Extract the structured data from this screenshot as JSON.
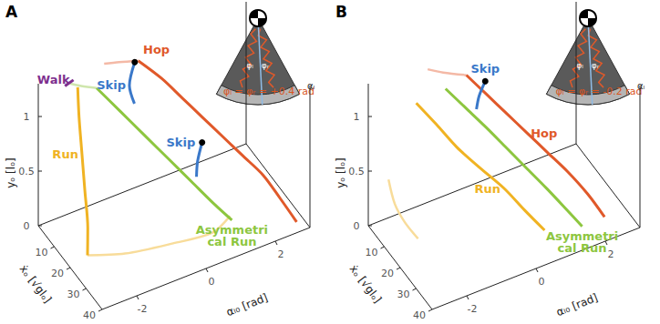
{
  "chart_data": [
    {
      "type": "line3d",
      "title": "A",
      "xlabel": "ẋₒ [√glₒ]",
      "ylabel": "αₗ₀ [rad]",
      "zlabel": "yₒ [lₒ]",
      "xlim": [
        0,
        40
      ],
      "ylim": [
        -3,
        3
      ],
      "zlim": [
        0,
        1.3
      ],
      "xticks": [
        10,
        20,
        30,
        40
      ],
      "yticks": [
        -2,
        0,
        2
      ],
      "zticks": [
        0,
        0.5,
        1
      ],
      "grid": false,
      "annotations": [
        "φₗ = φᵣ = +0.4 rad",
        "αₗ",
        "φₗ",
        "φᵣ"
      ],
      "series": [
        {
          "color": "#f4b9a6",
          "line_style": "faint",
          "x": [
            4,
            3,
            2.2
          ],
          "y": [
            -0.3,
            -0.8,
            -1.2
          ],
          "z": [
            1.25,
            1.28,
            1.3
          ]
        },
        {
          "color": "#f8dc9a",
          "line_style": "faint",
          "x": [
            20,
            24,
            28,
            31,
            29
          ],
          "y": [
            -2.5,
            -1.6,
            -0.4,
            0.6,
            1.2
          ],
          "z": [
            0.05,
            0.03,
            0.05,
            0.08,
            0.12
          ]
        },
        {
          "color": "#cfe6ad",
          "line_style": "faint",
          "x": [
            4,
            3,
            2.5
          ],
          "y": [
            -1.5,
            -1.9,
            -2.2
          ],
          "z": [
            1.15,
            1.2,
            1.25
          ]
        },
        {
          "name": "Walk",
          "color": "#7e2f8e",
          "line_style": "solid",
          "x": [
            1.5,
            2.5
          ],
          "y": [
            -2.3,
            -2.1
          ],
          "z": [
            1.22,
            1.27
          ]
        },
        {
          "name": "Run",
          "color": "#f0b323",
          "line_style": "solid",
          "x": [
            3,
            6,
            10,
            14,
            18,
            20
          ],
          "y": [
            -2.0,
            -2.1,
            -2.2,
            -2.3,
            -2.4,
            -2.5
          ],
          "z": [
            1.2,
            1.0,
            0.75,
            0.5,
            0.25,
            0.05
          ]
        },
        {
          "name": "Asymmetrical Run",
          "color": "#8dc63f",
          "line_style": "solid",
          "x": [
            4,
            8,
            12,
            16,
            20,
            24,
            28
          ],
          "y": [
            -1.5,
            -1.0,
            -0.5,
            0,
            0.5,
            1.0,
            1.3
          ],
          "z": [
            1.15,
            0.95,
            0.75,
            0.55,
            0.35,
            0.15,
            0.05
          ]
        },
        {
          "name": "Hop",
          "color": "#e0592a",
          "line_style": "solid",
          "x": [
            4,
            8,
            12,
            16,
            20,
            24,
            28,
            32,
            36
          ],
          "y": [
            -0.3,
            0.2,
            0.6,
            1.0,
            1.4,
            1.8,
            2.2,
            2.5,
            2.8
          ],
          "z": [
            1.25,
            1.1,
            0.95,
            0.8,
            0.65,
            0.5,
            0.35,
            0.18,
            0.0
          ]
        },
        {
          "name": "Skip",
          "color": "#3a78c9",
          "line_style": "solid",
          "marker": "circle",
          "x": [
            4,
            5,
            6
          ],
          "y": [
            -0.4,
            -0.6,
            -0.5
          ],
          "z": [
            1.25,
            1.08,
            0.92
          ]
        },
        {
          "name": "Skip",
          "color": "#3a78c9",
          "line_style": "solid",
          "marker": "circle",
          "x": [
            18,
            19.5,
            21
          ],
          "y": [
            0.9,
            0.7,
            0.6
          ],
          "z": [
            0.62,
            0.5,
            0.4
          ]
        }
      ]
    },
    {
      "type": "line3d",
      "title": "B",
      "xlabel": "ẋₒ [√glₒ]",
      "ylabel": "αₗ₀ [rad]",
      "zlabel": "yₒ [lₒ]",
      "xlim": [
        0,
        40
      ],
      "ylim": [
        -3,
        3
      ],
      "zlim": [
        0,
        1.3
      ],
      "xticks": [
        10,
        20,
        30,
        40
      ],
      "yticks": [
        -2,
        0,
        2
      ],
      "zticks": [
        0,
        0.5,
        1
      ],
      "grid": false,
      "annotations": [
        "φₗ = φᵣ = -0.2 rad",
        "αₗ",
        "φₗ",
        "φᵣ"
      ],
      "series": [
        {
          "color": "#f4b9a6",
          "line_style": "faint",
          "x": [
            5,
            3.5,
            2.5
          ],
          "y": [
            -0.4,
            -1.0,
            -1.4
          ],
          "z": [
            1.15,
            1.22,
            1.28
          ]
        },
        {
          "color": "#f8dc9a",
          "line_style": "faint",
          "x": [
            4,
            8,
            12,
            16
          ],
          "y": [
            -2.6,
            -2.6,
            -2.5,
            -2.3
          ],
          "z": [
            0.45,
            0.3,
            0.2,
            0.1
          ]
        },
        {
          "name": "Run",
          "color": "#f0b323",
          "line_style": "solid",
          "x": [
            4,
            8,
            12,
            16,
            20,
            24,
            28
          ],
          "y": [
            -1.8,
            -1.4,
            -1.0,
            -0.5,
            0,
            0.4,
            0.8
          ],
          "z": [
            1.05,
            0.88,
            0.7,
            0.52,
            0.35,
            0.18,
            0.02
          ]
        },
        {
          "name": "Asymmetrical Run",
          "color": "#8dc63f",
          "line_style": "solid",
          "x": [
            5,
            9,
            13,
            17,
            21,
            25,
            29,
            32
          ],
          "y": [
            -1.0,
            -0.6,
            -0.2,
            0.2,
            0.6,
            1.0,
            1.4,
            1.7
          ],
          "z": [
            1.1,
            0.95,
            0.8,
            0.64,
            0.48,
            0.32,
            0.15,
            0.02
          ]
        },
        {
          "name": "Hop",
          "color": "#e0592a",
          "line_style": "solid",
          "x": [
            5,
            9,
            13,
            17,
            21,
            25,
            29,
            33
          ],
          "y": [
            -0.4,
            0.0,
            0.4,
            0.8,
            1.2,
            1.6,
            2.0,
            2.3
          ],
          "z": [
            1.15,
            1.0,
            0.85,
            0.7,
            0.55,
            0.4,
            0.22,
            0.05
          ]
        },
        {
          "name": "Skip",
          "color": "#3a78c9",
          "line_style": "solid",
          "marker": "circle",
          "x": [
            6,
            6.5,
            7
          ],
          "y": [
            0.1,
            -0.1,
            -0.2
          ],
          "z": [
            1.05,
            0.95,
            0.85
          ]
        }
      ]
    }
  ]
}
